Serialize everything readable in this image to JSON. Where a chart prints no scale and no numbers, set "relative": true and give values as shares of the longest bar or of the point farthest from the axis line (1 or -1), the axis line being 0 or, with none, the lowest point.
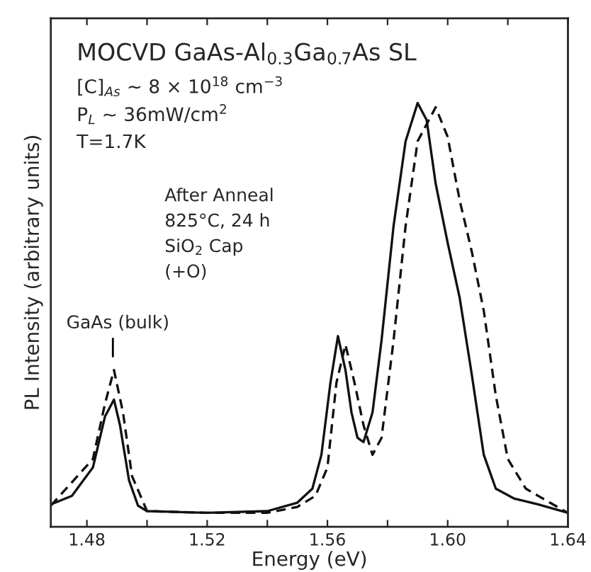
{
  "chart_data": {
    "type": "line",
    "relative": true,
    "xlabel": "Energy (eV)",
    "ylabel": "PL Intensity (arbitrary units)",
    "xlim": [
      1.468,
      1.64
    ],
    "xticks": [
      1.48,
      1.52,
      1.56,
      {
        "value": 1.6,
        "label": "1.60"
      },
      1.64,
      {
        "value": 1.5,
        "label": null
      },
      {
        "value": 1.54,
        "label": null
      },
      {
        "value": 1.58,
        "label": null
      },
      {
        "value": 1.62,
        "label": null
      }
    ],
    "tick_labels": "x",
    "grid": false,
    "legend": false,
    "series": [
      {
        "color": "#111111",
        "line_style": "solid",
        "x": [
          1.468,
          1.475,
          1.482,
          1.486,
          1.489,
          1.491,
          1.494,
          1.497,
          1.5,
          1.52,
          1.54,
          1.55,
          1.555,
          1.558,
          1.561,
          1.5635,
          1.566,
          1.568,
          1.57,
          1.572,
          1.575,
          1.578,
          1.582,
          1.586,
          1.59,
          1.593,
          1.596,
          1.6,
          1.604,
          1.608,
          1.612,
          1.616,
          1.622,
          1.63,
          1.64
        ],
        "values": [
          0.053,
          0.073,
          0.14,
          0.26,
          0.3,
          0.24,
          0.11,
          0.05,
          0.037,
          0.033,
          0.037,
          0.057,
          0.09,
          0.17,
          0.34,
          0.45,
          0.37,
          0.27,
          0.21,
          0.2,
          0.27,
          0.44,
          0.71,
          0.91,
          1.0,
          0.96,
          0.81,
          0.67,
          0.54,
          0.36,
          0.17,
          0.09,
          0.067,
          0.053,
          0.033
        ]
      },
      {
        "color": "#111111",
        "line_style": "dashed",
        "x": [
          1.468,
          1.482,
          1.486,
          1.489,
          1.492,
          1.495,
          1.5,
          1.52,
          1.54,
          1.55,
          1.556,
          1.56,
          1.563,
          1.566,
          1.569,
          1.572,
          1.575,
          1.578,
          1.582,
          1.586,
          1.59,
          1.596,
          1.6,
          1.604,
          1.608,
          1.612,
          1.616,
          1.62,
          1.626,
          1.634,
          1.64
        ],
        "values": [
          0.05,
          0.16,
          0.29,
          0.37,
          0.27,
          0.12,
          0.037,
          0.033,
          0.033,
          0.047,
          0.073,
          0.14,
          0.34,
          0.43,
          0.34,
          0.24,
          0.17,
          0.21,
          0.44,
          0.71,
          0.91,
          0.99,
          0.92,
          0.77,
          0.65,
          0.51,
          0.31,
          0.16,
          0.09,
          0.057,
          0.033
        ]
      }
    ],
    "annotations": [
      "MOCVD GaAs-Al$_{0.3}$Ga$_{0.7}$As SL",
      "[C]$_{As}$ ~ 8 × 10$^{18}$ cm$^{−3}$",
      "P$_{L}$ ~ 36mW/cm$^{2}$",
      "T=1.7K",
      "After Anneal",
      "825°C, 24 h",
      "SiO$_{2}$ Cap",
      "(+O)",
      "GaAs (bulk)"
    ]
  }
}
